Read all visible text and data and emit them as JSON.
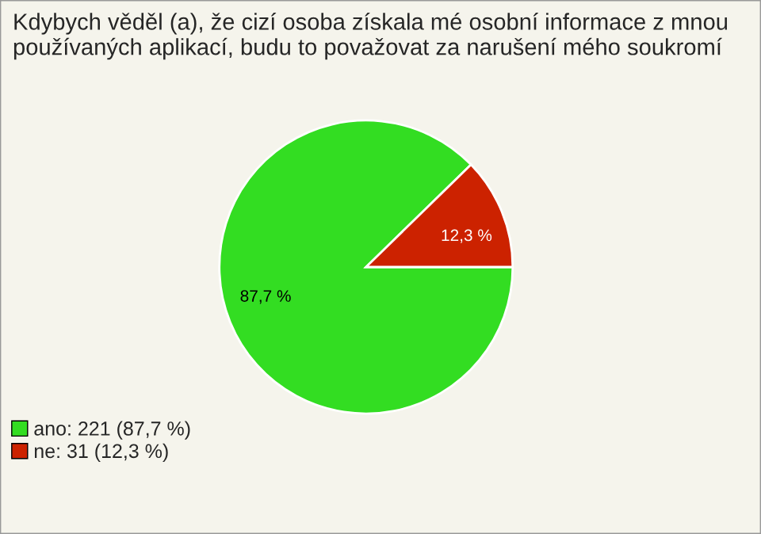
{
  "chart_data": {
    "type": "pie",
    "title": "Kdybych věděl (a), že cizí osoba získala mé osobní informace z mnou používaných aplikací, budu to považovat za narušení mého soukromí",
    "categories": [
      "ano: 221 (87,7 %)",
      "ne: 31 (12,3 %)"
    ],
    "values": [
      87.7,
      12.3
    ],
    "value_labels": [
      "87,7 %",
      "12,3 %"
    ],
    "colors": [
      "#33dd22",
      "#cc2200"
    ],
    "legend": "bottom left"
  }
}
